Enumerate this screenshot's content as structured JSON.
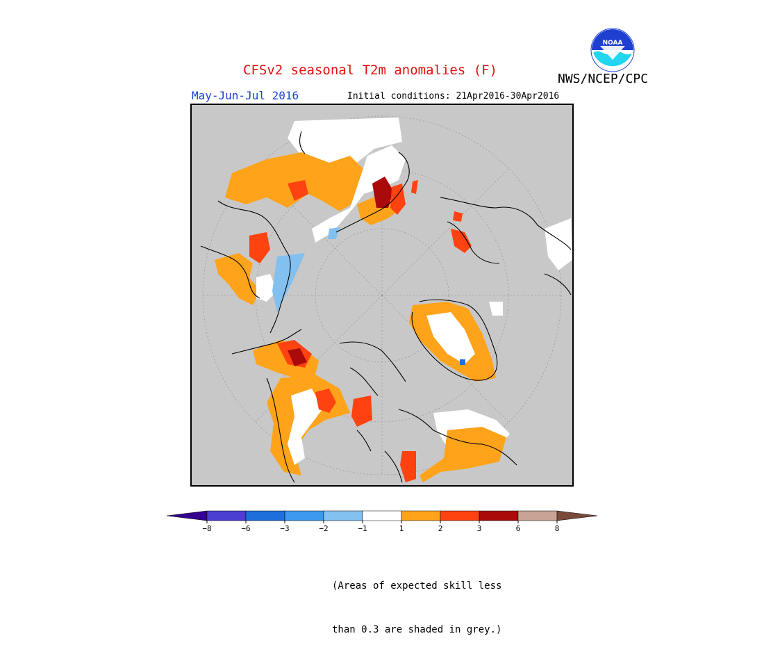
{
  "header": {
    "title": "CFSv2 seasonal T2m anomalies (F)",
    "season": "May-Jun-Jul 2016",
    "initial_conditions": "Initial conditions: 21Apr2016-30Apr2016",
    "agency": "NWS/NCEP/CPC",
    "logo_text": "NOAA"
  },
  "colors": {
    "title": "#e01010",
    "season": "#1a3fd6",
    "skill_grey": "#c8c8c8",
    "ocean_bg": "#c8c8c8"
  },
  "legend": {
    "bins": [
      {
        "color": "#34008f"
      },
      {
        "color": "#4a3fd0"
      },
      {
        "color": "#1f6fdb"
      },
      {
        "color": "#3b98ec"
      },
      {
        "color": "#82c0f0"
      },
      {
        "color": "#ffffff"
      },
      {
        "color": "#ffa31a"
      },
      {
        "color": "#ff4310"
      },
      {
        "color": "#aa0a0a"
      },
      {
        "color": "#c8a396"
      },
      {
        "color": "#7a4a3a"
      }
    ],
    "labels": [
      "−8",
      "−6",
      "−3",
      "−2",
      "−1",
      "1",
      "2",
      "3",
      "6",
      "8"
    ]
  },
  "footnote": {
    "line1": "(Areas of expected skill less",
    "line2": "than 0.3 are shaded in grey.)"
  }
}
